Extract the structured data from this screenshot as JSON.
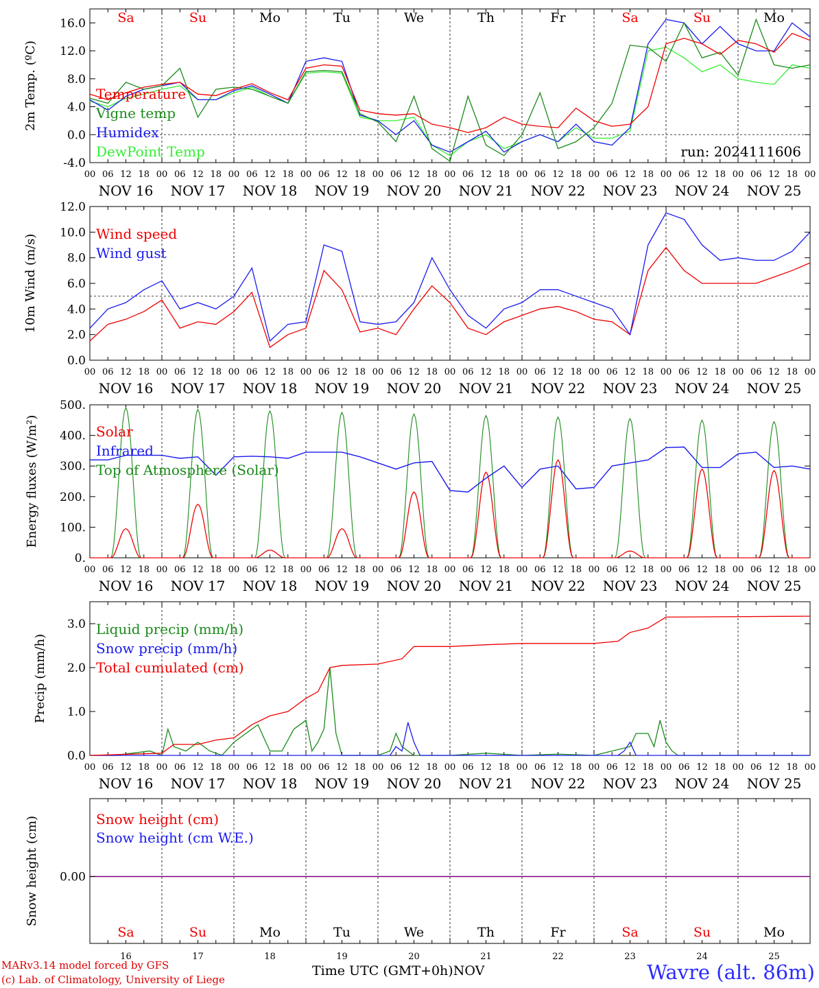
{
  "run_label": "run: 2024111606",
  "footer": {
    "model": "MARv3.14 model forced by GFS",
    "credit": "(c) Lab. of Climatology, University of Liege",
    "time_axis": "Time UTC (GMT+0h)",
    "month": "NOV",
    "station": "Wavre (alt. 86m)"
  },
  "colors": {
    "red": "#ee0000",
    "green": "#1a8a1a",
    "blue": "#1a1aee",
    "lightgreen": "#33ee33",
    "purple": "#800080",
    "weekend": "#ee0000",
    "weekday": "#000000"
  },
  "days": {
    "abbr": [
      "Sa",
      "Su",
      "Mo",
      "Tu",
      "We",
      "Th",
      "Fr",
      "Sa",
      "Su",
      "Mo"
    ],
    "weekend": [
      true,
      true,
      false,
      false,
      false,
      false,
      false,
      true,
      true,
      false
    ],
    "dates": [
      "NOV 16",
      "NOV 17",
      "NOV 18",
      "NOV 19",
      "NOV 20",
      "NOV 21",
      "NOV 22",
      "NOV 23",
      "NOV 24",
      "NOV 25"
    ],
    "numbers": [
      "16",
      "17",
      "18",
      "19",
      "20",
      "21",
      "22",
      "23",
      "24",
      "25"
    ],
    "hour_ticks": [
      "00",
      "06",
      "12",
      "18"
    ],
    "end_tick": "00"
  },
  "chart_data": [
    {
      "type": "line",
      "ylabel": "2m Temp. (ºC)",
      "ylim": [
        -4,
        18
      ],
      "yticks": [
        "-4.0",
        "0.0",
        "4.0",
        "8.0",
        "12.0",
        "16.0"
      ],
      "x_unit": "hours since Nov 16 00 UTC",
      "dashed_zero": 0,
      "series": [
        {
          "name": "Temperature",
          "color": "red",
          "x": [
            0,
            6,
            12,
            18,
            24,
            30,
            36,
            42,
            48,
            54,
            60,
            66,
            72,
            78,
            84,
            90,
            96,
            102,
            108,
            114,
            120,
            126,
            132,
            138,
            144,
            150,
            156,
            162,
            168,
            174,
            180,
            186,
            192,
            198,
            204,
            210,
            216,
            222,
            228,
            234,
            240
          ],
          "y": [
            5.8,
            5.0,
            6.0,
            6.8,
            7.2,
            7.5,
            5.8,
            5.6,
            6.5,
            7.3,
            6.0,
            5.0,
            9.5,
            10.0,
            9.8,
            3.5,
            3.0,
            2.8,
            3.0,
            1.5,
            1.0,
            0.3,
            1.0,
            2.5,
            1.5,
            1.2,
            1.0,
            3.8,
            2.0,
            1.2,
            1.5,
            4.0,
            13.0,
            13.8,
            13.0,
            11.5,
            13.5,
            13.0,
            11.8,
            14.5,
            13.5
          ]
        },
        {
          "name": "Vigne temp",
          "color": "green",
          "x": [
            0,
            6,
            12,
            18,
            24,
            30,
            36,
            42,
            48,
            54,
            60,
            66,
            72,
            78,
            84,
            90,
            96,
            102,
            108,
            114,
            120,
            126,
            132,
            138,
            144,
            150,
            156,
            162,
            168,
            174,
            180,
            186,
            192,
            198,
            204,
            210,
            216,
            222,
            228,
            234,
            240
          ],
          "y": [
            5.2,
            4.5,
            7.5,
            6.5,
            7.0,
            9.5,
            2.5,
            6.5,
            6.8,
            6.5,
            5.5,
            4.5,
            9.0,
            9.2,
            9.0,
            3.0,
            1.8,
            -1.0,
            5.5,
            -2.0,
            -3.8,
            5.5,
            -1.5,
            -3.0,
            0.0,
            6.0,
            -2.0,
            -1.0,
            1.0,
            4.5,
            12.8,
            12.5,
            10.5,
            16.0,
            11.0,
            11.8,
            8.5,
            16.5,
            10.0,
            9.5,
            10.0
          ]
        },
        {
          "name": "Humidex",
          "color": "blue",
          "x": [
            0,
            6,
            12,
            18,
            24,
            30,
            36,
            42,
            48,
            54,
            60,
            66,
            72,
            78,
            84,
            90,
            96,
            102,
            108,
            114,
            120,
            126,
            132,
            138,
            144,
            150,
            156,
            162,
            168,
            174,
            180,
            186,
            192,
            198,
            204,
            210,
            216,
            222,
            228,
            234,
            240
          ],
          "y": [
            5.0,
            3.5,
            5.5,
            6.5,
            7.0,
            7.5,
            5.0,
            5.0,
            6.3,
            7.0,
            5.8,
            4.5,
            10.5,
            11.0,
            10.5,
            2.8,
            2.0,
            0.0,
            2.0,
            -1.5,
            -2.5,
            -1.0,
            0.5,
            -2.5,
            -1.0,
            0.0,
            -1.0,
            1.5,
            -1.0,
            -1.5,
            1.0,
            13.0,
            16.5,
            16.0,
            13.0,
            15.5,
            13.0,
            12.0,
            12.0,
            16.0,
            14.0
          ]
        },
        {
          "name": "DewPoint Temp",
          "color": "lightgreen",
          "x": [
            0,
            6,
            12,
            18,
            24,
            30,
            36,
            42,
            48,
            54,
            60,
            66,
            72,
            78,
            84,
            90,
            96,
            102,
            108,
            114,
            120,
            126,
            132,
            138,
            144,
            150,
            156,
            162,
            168,
            174,
            180,
            186,
            192,
            198,
            204,
            210,
            216,
            222,
            228,
            234,
            240
          ],
          "y": [
            4.8,
            4.0,
            5.2,
            5.8,
            6.5,
            7.0,
            5.0,
            5.0,
            6.0,
            6.8,
            5.5,
            4.5,
            8.8,
            9.0,
            8.8,
            2.5,
            2.0,
            2.0,
            2.5,
            -1.5,
            -3.0,
            -1.0,
            0.0,
            -2.0,
            -1.0,
            0.0,
            -1.0,
            1.0,
            -0.5,
            -0.5,
            0.5,
            12.0,
            12.5,
            11.0,
            9.0,
            10.0,
            8.0,
            7.5,
            7.2,
            10.0,
            9.5
          ]
        }
      ]
    },
    {
      "type": "line",
      "ylabel": "10m Wind (m/s)",
      "ylim": [
        0,
        12
      ],
      "yticks": [
        "0.0",
        "2.0",
        "4.0",
        "6.0",
        "8.0",
        "10.0",
        "12.0"
      ],
      "dashed_ref": 5,
      "series": [
        {
          "name": "Wind speed",
          "color": "red",
          "x": [
            0,
            6,
            12,
            18,
            24,
            30,
            36,
            42,
            48,
            54,
            60,
            66,
            72,
            78,
            84,
            90,
            96,
            102,
            108,
            114,
            120,
            126,
            132,
            138,
            144,
            150,
            156,
            162,
            168,
            174,
            180,
            186,
            192,
            198,
            204,
            210,
            216,
            222,
            228,
            234,
            240
          ],
          "y": [
            1.5,
            2.8,
            3.2,
            3.8,
            4.7,
            2.5,
            3.0,
            2.8,
            3.8,
            5.3,
            1.0,
            2.0,
            2.5,
            7.0,
            5.5,
            2.2,
            2.5,
            2.0,
            4.0,
            5.8,
            4.5,
            2.5,
            2.0,
            3.0,
            3.5,
            4.0,
            4.2,
            3.8,
            3.2,
            3.0,
            2.0,
            7.0,
            8.8,
            7.0,
            6.0,
            6.0,
            6.0,
            6.0,
            6.5,
            7.0,
            7.6
          ]
        },
        {
          "name": "Wind gust",
          "color": "blue",
          "x": [
            0,
            6,
            12,
            18,
            24,
            30,
            36,
            42,
            48,
            54,
            60,
            66,
            72,
            78,
            84,
            90,
            96,
            102,
            108,
            114,
            120,
            126,
            132,
            138,
            144,
            150,
            156,
            162,
            168,
            174,
            180,
            186,
            192,
            198,
            204,
            210,
            216,
            222,
            228,
            234,
            240
          ],
          "y": [
            2.5,
            4.0,
            4.5,
            5.5,
            6.2,
            4.0,
            4.5,
            4.0,
            5.0,
            7.2,
            1.5,
            2.8,
            3.0,
            9.0,
            8.5,
            3.0,
            2.8,
            3.0,
            4.5,
            8.0,
            5.5,
            3.5,
            2.5,
            4.0,
            4.5,
            5.5,
            5.5,
            5.0,
            4.5,
            4.0,
            2.0,
            9.0,
            11.5,
            11.0,
            9.0,
            7.8,
            8.0,
            7.8,
            7.8,
            8.5,
            10.0
          ]
        }
      ]
    },
    {
      "type": "line",
      "ylabel": "Energy fluxes (W/m²)",
      "ylim": [
        0,
        500
      ],
      "yticks": [
        "0.",
        "100.",
        "200.",
        "300.",
        "400.",
        "500."
      ],
      "series": [
        {
          "name": "Solar",
          "color": "red",
          "peaks": [
            95,
            175,
            25,
            95,
            215,
            280,
            320,
            22,
            290,
            285
          ]
        },
        {
          "name": "Infrared",
          "color": "blue",
          "x": [
            0,
            6,
            12,
            18,
            24,
            30,
            36,
            42,
            48,
            54,
            60,
            66,
            72,
            78,
            84,
            90,
            96,
            102,
            108,
            114,
            120,
            126,
            132,
            138,
            144,
            150,
            156,
            162,
            168,
            174,
            180,
            186,
            192,
            198,
            204,
            210,
            216,
            222,
            228,
            234,
            240
          ],
          "y": [
            320,
            320,
            335,
            335,
            335,
            325,
            330,
            270,
            330,
            332,
            330,
            325,
            345,
            345,
            345,
            330,
            310,
            290,
            310,
            315,
            220,
            215,
            260,
            300,
            230,
            290,
            300,
            225,
            230,
            300,
            310,
            320,
            360,
            362,
            295,
            295,
            340,
            345,
            295,
            300,
            290
          ]
        },
        {
          "name": "Top of Atmosphere (Solar)",
          "color": "green",
          "peaks": [
            490,
            485,
            480,
            475,
            470,
            465,
            460,
            455,
            450,
            445
          ]
        }
      ]
    },
    {
      "type": "line",
      "ylabel": "Precip (mm/h)",
      "ylim": [
        0,
        3.5
      ],
      "yticks": [
        "0.0",
        "1.0",
        "2.0",
        "3.0"
      ],
      "series": [
        {
          "name": "Liquid precip (mm/h)",
          "color": "green",
          "x": [
            0,
            8,
            14,
            20,
            24,
            26,
            28,
            32,
            36,
            40,
            44,
            48,
            52,
            56,
            60,
            64,
            68,
            72,
            74,
            76,
            78,
            80,
            82,
            84,
            88,
            96,
            100,
            102,
            104,
            108,
            112,
            120,
            132,
            144,
            156,
            168,
            180,
            182,
            186,
            188,
            190,
            192,
            194,
            196,
            200,
            240
          ],
          "y": [
            0,
            0,
            0.05,
            0.1,
            0,
            0.6,
            0.2,
            0.1,
            0.3,
            0.1,
            0,
            0.3,
            0.5,
            0.7,
            0.1,
            0.1,
            0.6,
            0.8,
            0.1,
            0.3,
            0.6,
            2.0,
            0.5,
            0,
            0,
            0,
            0.1,
            0.5,
            0.2,
            0,
            0,
            0,
            0.05,
            0,
            0.03,
            0,
            0.2,
            0.5,
            0.5,
            0.2,
            0.8,
            0.3,
            0.1,
            0,
            0,
            0
          ]
        },
        {
          "name": "Snow precip (mm/h)",
          "color": "blue",
          "x": [
            0,
            100,
            102,
            104,
            106,
            108,
            110,
            176,
            178,
            180,
            182,
            240
          ],
          "y": [
            0,
            0,
            0.2,
            0.1,
            0.75,
            0.3,
            0,
            0,
            0.1,
            0.3,
            0,
            0
          ]
        },
        {
          "name": "Total cumulated (cm)",
          "color": "red",
          "x": [
            0,
            24,
            28,
            36,
            42,
            48,
            54,
            60,
            66,
            72,
            76,
            80,
            84,
            96,
            104,
            108,
            120,
            132,
            144,
            156,
            168,
            176,
            180,
            186,
            192,
            240
          ],
          "y": [
            0,
            0.05,
            0.25,
            0.25,
            0.35,
            0.4,
            0.7,
            0.9,
            1.0,
            1.3,
            1.45,
            2.0,
            2.05,
            2.08,
            2.2,
            2.48,
            2.48,
            2.52,
            2.55,
            2.55,
            2.55,
            2.6,
            2.8,
            2.9,
            3.15,
            3.17
          ]
        }
      ]
    },
    {
      "type": "line",
      "ylabel": "Snow height (cm)",
      "yticks": [
        "0.00"
      ],
      "series": [
        {
          "name": "Snow height (cm)",
          "color": "red",
          "x": [
            0,
            240
          ],
          "y": [
            0,
            0
          ]
        },
        {
          "name": "Snow height (cm W.E.)",
          "color": "blue",
          "x": [
            0,
            240
          ],
          "y": [
            0,
            0
          ]
        }
      ]
    }
  ]
}
